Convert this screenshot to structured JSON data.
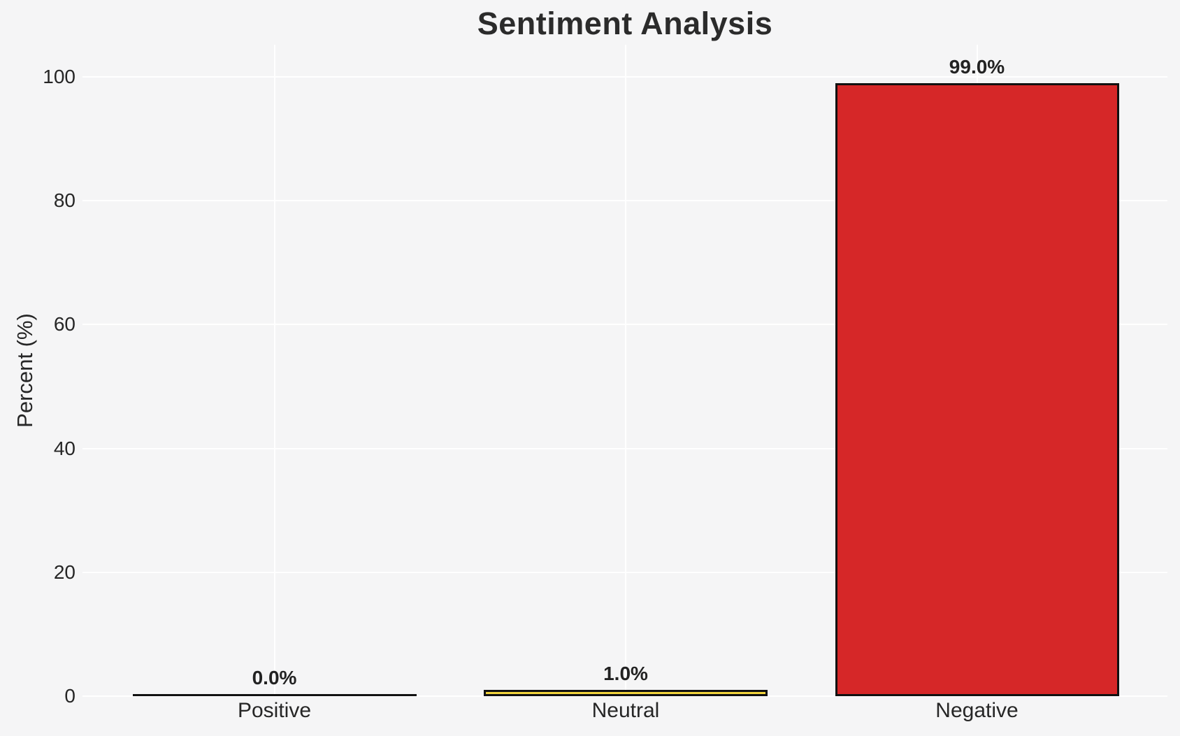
{
  "figure": {
    "background": "#f5f5f6",
    "grid_color": "#ffffff",
    "text_color": "#262626"
  },
  "chart_data": {
    "type": "bar",
    "title": "Sentiment Analysis",
    "ylabel": "Percent (%)",
    "xlabel": "",
    "categories": [
      "Positive",
      "Neutral",
      "Negative"
    ],
    "values": [
      0.0,
      1.0,
      99.0
    ],
    "value_labels": [
      "0.0%",
      "1.0%",
      "99.0%"
    ],
    "bar_colors": [
      "none",
      "#f2d43c",
      "#d62728"
    ],
    "bar_edge_color": "#111111",
    "yticks": [
      0,
      20,
      40,
      60,
      80,
      100
    ],
    "ytick_labels": [
      "0",
      "20",
      "40",
      "60",
      "80",
      "100"
    ],
    "ylim": [
      0,
      104
    ],
    "grid": true,
    "legend_position": "none"
  }
}
